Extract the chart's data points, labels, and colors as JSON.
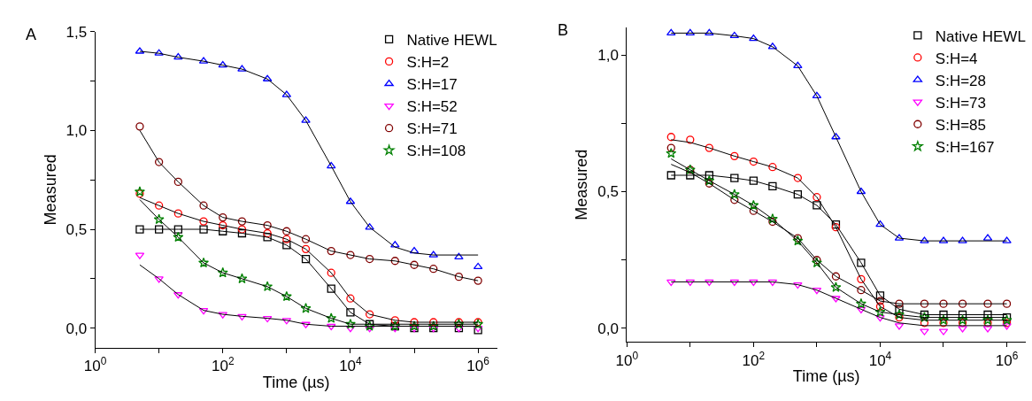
{
  "chart_data": [
    {
      "type": "scatter",
      "annotations": [
        "A"
      ],
      "xlabel": "Time (µs)",
      "ylabel": "Measured",
      "log": "x",
      "legend": "top right",
      "x": [
        5,
        10,
        20,
        50,
        100,
        200,
        500,
        1000,
        2000,
        5000,
        10000,
        20000,
        50000,
        100000,
        200000,
        500000,
        1000000
      ],
      "xlim": [
        1,
        2000000
      ],
      "xticks": [
        {
          "value": 1,
          "label": "10$^{0}$"
        },
        {
          "value": 10,
          "label": null
        },
        {
          "value": 100,
          "label": "10$^{2}$"
        },
        {
          "value": 1000,
          "label": null
        },
        {
          "value": 10000,
          "label": "10$^{4}$"
        },
        {
          "value": 100000,
          "label": null
        },
        {
          "value": 1000000,
          "label": "10$^{6}$"
        }
      ],
      "ylim": [
        -0.1,
        1.5
      ],
      "yticks": [
        {
          "value": 0,
          "label": "0,0"
        },
        {
          "value": 0.25,
          "label": null
        },
        {
          "value": 0.5,
          "label": "0,5"
        },
        {
          "value": 0.75,
          "label": null
        },
        {
          "value": 1,
          "label": "1,0"
        },
        {
          "value": 1.25,
          "label": null
        },
        {
          "value": 1.5,
          "label": "1,5"
        }
      ],
      "series": [
        {
          "name": "Native HEWL",
          "color": "#000000",
          "marker": "square",
          "values": [
            0.5,
            0.5,
            0.5,
            0.5,
            0.49,
            0.48,
            0.46,
            0.42,
            0.35,
            0.2,
            0.08,
            0.02,
            0.01,
            0.0,
            0.0,
            0.0,
            -0.01
          ]
        },
        {
          "name": "S:H=2",
          "color": "#ff0000",
          "marker": "circle",
          "values": [
            0.68,
            0.62,
            0.58,
            0.54,
            0.52,
            0.5,
            0.48,
            0.45,
            0.4,
            0.28,
            0.15,
            0.07,
            0.04,
            0.03,
            0.03,
            0.03,
            0.03
          ]
        },
        {
          "name": "S:H=17",
          "color": "#0000ff",
          "marker": "triangle",
          "values": [
            1.4,
            1.39,
            1.37,
            1.35,
            1.33,
            1.31,
            1.26,
            1.18,
            1.05,
            0.82,
            0.64,
            0.51,
            0.42,
            0.39,
            0.37,
            0.36,
            0.31
          ]
        },
        {
          "name": "S:H=52",
          "color": "#ff00ff",
          "marker": "triangle-down",
          "values": [
            0.37,
            0.25,
            0.17,
            0.09,
            0.07,
            0.06,
            0.05,
            0.04,
            0.02,
            0.01,
            0.0,
            0.0,
            0.0,
            0.0,
            0.0,
            0.0,
            0.0
          ]
        },
        {
          "name": "S:H=71",
          "color": "#800000",
          "values": [
            1.02,
            0.84,
            0.74,
            0.62,
            0.56,
            0.54,
            0.52,
            0.49,
            0.45,
            0.39,
            0.37,
            0.35,
            0.34,
            0.32,
            0.3,
            0.26,
            0.24
          ]
        },
        {
          "name": "S:H=108",
          "color": "#008000",
          "marker": "star",
          "values": [
            0.69,
            0.55,
            0.46,
            0.33,
            0.28,
            0.25,
            0.21,
            0.16,
            0.1,
            0.05,
            0.02,
            0.01,
            0.01,
            0.01,
            0.01,
            0.02,
            0.02
          ]
        },
        {
          "type": "line",
          "color": "#000000",
          "values": [
            0.5,
            0.5,
            0.5,
            0.5,
            0.49,
            0.48,
            0.46,
            0.42,
            0.35,
            0.2,
            0.08,
            0.02,
            0.01,
            0.01,
            0.01,
            0.01,
            0.01
          ]
        },
        {
          "type": "line",
          "color": "#000000",
          "values": [
            0.66,
            0.62,
            0.58,
            0.54,
            0.52,
            0.5,
            0.48,
            0.45,
            0.4,
            0.28,
            0.15,
            0.07,
            0.04,
            0.03,
            0.03,
            0.03,
            0.03
          ]
        },
        {
          "type": "line",
          "color": "#000000",
          "values": [
            1.4,
            1.39,
            1.37,
            1.35,
            1.33,
            1.31,
            1.26,
            1.18,
            1.05,
            0.82,
            0.64,
            0.51,
            0.41,
            0.38,
            0.37,
            0.37,
            0.37
          ]
        },
        {
          "type": "line",
          "color": "#000000",
          "values": [
            0.32,
            0.25,
            0.17,
            0.09,
            0.07,
            0.06,
            0.05,
            0.04,
            0.02,
            0.01,
            0.01,
            0.01,
            0.01,
            0.01,
            0.01,
            0.01,
            0.01
          ]
        },
        {
          "type": "line",
          "color": "#000000",
          "values": [
            1.0,
            0.84,
            0.74,
            0.62,
            0.56,
            0.54,
            0.52,
            0.49,
            0.45,
            0.39,
            0.37,
            0.35,
            0.34,
            0.32,
            0.3,
            0.26,
            0.24
          ]
        },
        {
          "type": "line",
          "color": "#000000",
          "values": [
            0.65,
            0.55,
            0.46,
            0.33,
            0.28,
            0.25,
            0.21,
            0.16,
            0.1,
            0.05,
            0.02,
            0.02,
            0.02,
            0.02,
            0.02,
            0.02,
            0.02
          ]
        }
      ]
    },
    {
      "type": "scatter",
      "annotations": [
        "B"
      ],
      "xlabel": "Time (µs)",
      "ylabel": "Measured",
      "log": "x",
      "legend": "top right",
      "x": [
        5,
        10,
        20,
        50,
        100,
        200,
        500,
        1000,
        2000,
        5000,
        10000,
        20000,
        50000,
        100000,
        200000,
        500000,
        1000000
      ],
      "xlim": [
        1,
        2000000
      ],
      "xticks": [
        {
          "value": 1,
          "label": "10$^{0}$"
        },
        {
          "value": 10,
          "label": null
        },
        {
          "value": 100,
          "label": "10$^{2}$"
        },
        {
          "value": 1000,
          "label": null
        },
        {
          "value": 10000,
          "label": "10$^{4}$"
        },
        {
          "value": 100000,
          "label": null
        },
        {
          "value": 1000000,
          "label": "10$^{6}$"
        }
      ],
      "ylim": [
        -0.05,
        1.1
      ],
      "yticks": [
        {
          "value": 0,
          "label": "0,0"
        },
        {
          "value": 0.25,
          "label": null
        },
        {
          "value": 0.5,
          "label": "0,5"
        },
        {
          "value": 0.75,
          "label": null
        },
        {
          "value": 1,
          "label": "1,0"
        }
      ],
      "series": [
        {
          "name": "Native HEWL",
          "color": "#000000",
          "marker": "square",
          "values": [
            0.56,
            0.56,
            0.56,
            0.55,
            0.54,
            0.52,
            0.49,
            0.45,
            0.38,
            0.24,
            0.12,
            0.07,
            0.05,
            0.05,
            0.05,
            0.05,
            0.04
          ]
        },
        {
          "name": "S:H=4",
          "color": "#ff0000",
          "marker": "circle",
          "values": [
            0.7,
            0.69,
            0.66,
            0.63,
            0.61,
            0.59,
            0.55,
            0.48,
            0.37,
            0.18,
            0.08,
            0.04,
            0.02,
            0.02,
            0.02,
            0.02,
            0.02
          ]
        },
        {
          "name": "S:H=28",
          "color": "#0000ff",
          "marker": "triangle",
          "values": [
            1.08,
            1.08,
            1.08,
            1.07,
            1.06,
            1.03,
            0.96,
            0.85,
            0.7,
            0.5,
            0.38,
            0.33,
            0.32,
            0.32,
            0.32,
            0.33,
            0.32
          ]
        },
        {
          "name": "S:H=73",
          "color": "#ff00ff",
          "marker": "triangle-down",
          "values": [
            0.17,
            0.17,
            0.17,
            0.17,
            0.17,
            0.17,
            0.16,
            0.14,
            0.11,
            0.07,
            0.04,
            0.01,
            -0.01,
            -0.01,
            0.0,
            0.0,
            0.01
          ]
        },
        {
          "name": "S:H=85",
          "color": "#800000",
          "values": [
            0.66,
            0.58,
            0.53,
            0.47,
            0.43,
            0.39,
            0.33,
            0.25,
            0.19,
            0.14,
            0.1,
            0.09,
            0.09,
            0.09,
            0.09,
            0.09,
            0.09
          ]
        },
        {
          "name": "S:H=167",
          "color": "#008000",
          "marker": "star",
          "values": [
            0.64,
            0.58,
            0.54,
            0.49,
            0.45,
            0.4,
            0.32,
            0.24,
            0.15,
            0.09,
            0.06,
            0.05,
            0.04,
            0.03,
            0.03,
            0.03,
            0.03
          ]
        },
        {
          "type": "line",
          "color": "#000000",
          "values": [
            0.56,
            0.56,
            0.56,
            0.55,
            0.54,
            0.52,
            0.49,
            0.45,
            0.38,
            0.24,
            0.12,
            0.07,
            0.05,
            0.05,
            0.05,
            0.05,
            0.05
          ]
        },
        {
          "type": "line",
          "color": "#000000",
          "values": [
            0.69,
            0.68,
            0.66,
            0.63,
            0.61,
            0.59,
            0.55,
            0.48,
            0.37,
            0.18,
            0.08,
            0.04,
            0.03,
            0.03,
            0.03,
            0.03,
            0.03
          ]
        },
        {
          "type": "line",
          "color": "#000000",
          "values": [
            1.08,
            1.08,
            1.08,
            1.07,
            1.06,
            1.03,
            0.96,
            0.85,
            0.7,
            0.5,
            0.38,
            0.33,
            0.32,
            0.32,
            0.32,
            0.32,
            0.32
          ]
        },
        {
          "type": "line",
          "color": "#000000",
          "values": [
            0.17,
            0.17,
            0.17,
            0.17,
            0.17,
            0.17,
            0.16,
            0.14,
            0.11,
            0.07,
            0.04,
            0.02,
            0.01,
            0.01,
            0.01,
            0.01,
            0.01
          ]
        },
        {
          "type": "line",
          "color": "#000000",
          "values": [
            0.6,
            0.57,
            0.53,
            0.47,
            0.43,
            0.39,
            0.33,
            0.25,
            0.19,
            0.14,
            0.1,
            0.09,
            0.09,
            0.09,
            0.09,
            0.09,
            0.09
          ]
        },
        {
          "type": "line",
          "color": "#000000",
          "values": [
            0.62,
            0.58,
            0.54,
            0.49,
            0.45,
            0.4,
            0.32,
            0.24,
            0.15,
            0.09,
            0.06,
            0.05,
            0.04,
            0.04,
            0.04,
            0.04,
            0.04
          ]
        }
      ]
    }
  ]
}
